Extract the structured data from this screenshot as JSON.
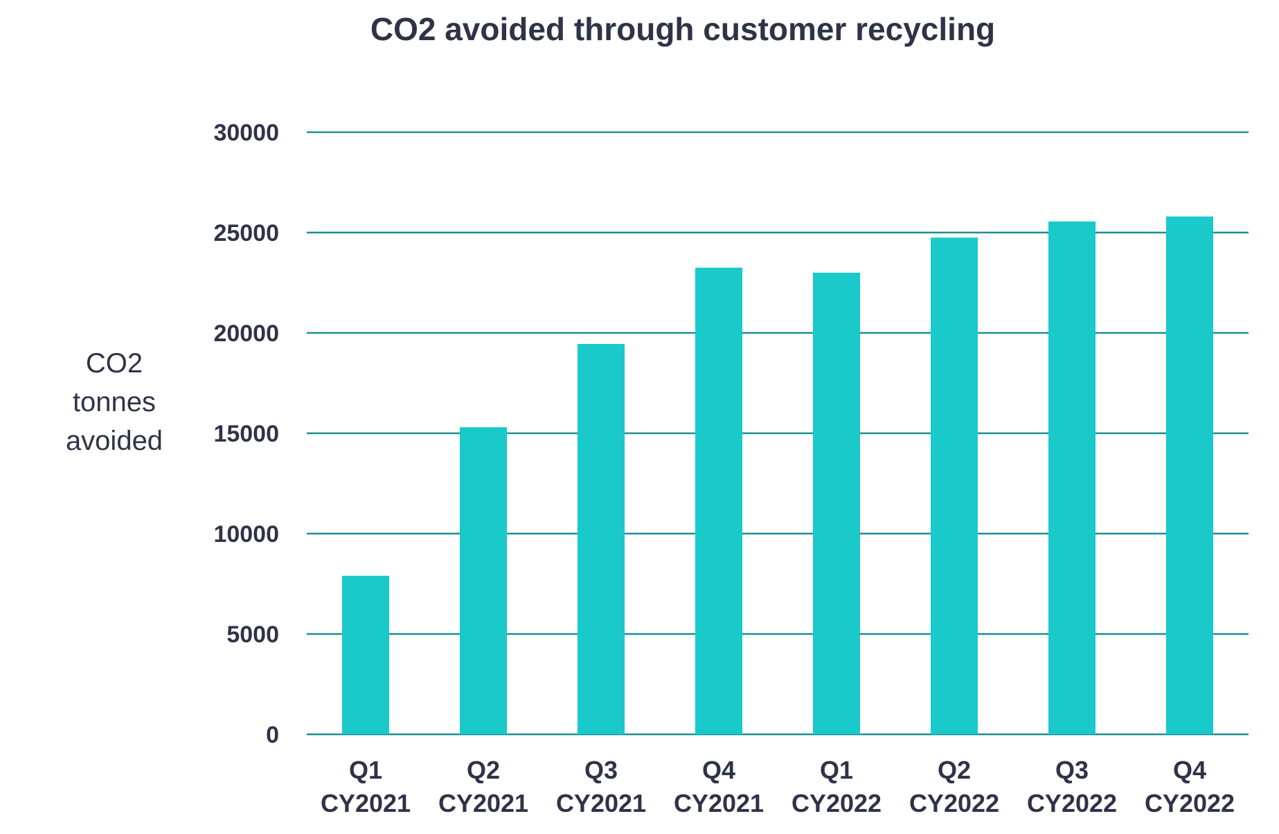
{
  "chart_data": {
    "type": "bar",
    "title": "CO2 avoided through customer recycling",
    "ylabel_lines": [
      "CO2",
      "tonnes",
      "avoided"
    ],
    "xlabel": "",
    "categories": [
      [
        "Q1",
        "CY2021"
      ],
      [
        "Q2",
        "CY2021"
      ],
      [
        "Q3",
        "CY2021"
      ],
      [
        "Q4",
        "CY2021"
      ],
      [
        "Q1",
        "CY2022"
      ],
      [
        "Q2",
        "CY2022"
      ],
      [
        "Q3",
        "CY2022"
      ],
      [
        "Q4",
        "CY2022"
      ]
    ],
    "values": [
      7900,
      15300,
      19450,
      23250,
      23000,
      24750,
      25550,
      25800
    ],
    "ylim": [
      0,
      30000
    ],
    "yticks": [
      0,
      5000,
      10000,
      15000,
      20000,
      25000,
      30000
    ],
    "grid": true,
    "legend": "none",
    "colors": {
      "bar": "#1ac9c9",
      "grid": "#1a8f92",
      "text": "#2f3347"
    }
  }
}
